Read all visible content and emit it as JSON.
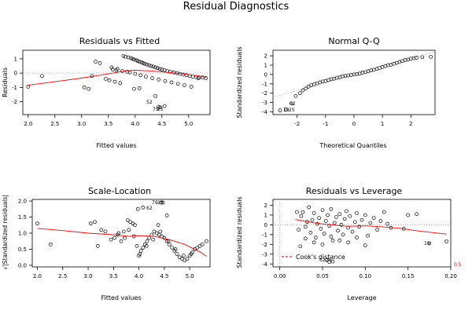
{
  "figure_title": "Residual Diagnostics",
  "panels": {
    "rvf": {
      "title": "Residuals vs Fitted",
      "xlabel": "Fitted values",
      "ylabel": "Residuals",
      "xticks": [
        "2.0",
        "2.5",
        "3.0",
        "3.5",
        "4.0",
        "4.5",
        "5.0"
      ],
      "yticks": [
        "-2",
        "-1",
        "0",
        "1"
      ],
      "point_labels": [
        "52",
        "79",
        "25"
      ]
    },
    "qq": {
      "title": "Normal Q-Q",
      "xlabel": "Theoretical Quantiles",
      "ylabel": "Standardized residuals",
      "xticks": [
        "-2",
        "-1",
        "0",
        "1",
        "2"
      ],
      "yticks": [
        "-4",
        "-3",
        "-2",
        "-1",
        "0",
        "1",
        "2"
      ],
      "point_labels": [
        "62",
        "19",
        "25"
      ]
    },
    "sl": {
      "title": "Scale-Location",
      "xlabel": "Fitted values",
      "ylabel": "√|Standardized residuals|",
      "xticks": [
        "2.0",
        "2.5",
        "3.0",
        "3.5",
        "4.0",
        "4.5",
        "5.0"
      ],
      "yticks": [
        "0.0",
        "0.5",
        "1.0",
        "1.5",
        "2.0"
      ],
      "point_labels": [
        "62",
        "79",
        "25"
      ]
    },
    "rvl": {
      "title": "Residuals vs Leverage",
      "xlabel": "Leverage",
      "ylabel": "Standardized residuals",
      "xticks": [
        "0.00",
        "0.05",
        "0.10",
        "0.15",
        "0.20"
      ],
      "yticks": [
        "-4",
        "-3",
        "-2",
        "-1",
        "0",
        "1",
        "2"
      ],
      "point_labels": [
        "19",
        "62",
        "25"
      ],
      "legend_label": "Cook's distance",
      "cook_label": "0.5"
    }
  },
  "colors": {
    "points": "#000000",
    "smooth": "#ff0000",
    "reference": "#999999",
    "cook": "#ff0000"
  },
  "chart_data": [
    {
      "type": "scatter",
      "title": "Residuals vs Fitted",
      "xlabel": "Fitted values",
      "ylabel": "Residuals",
      "xlim": [
        1.9,
        5.4
      ],
      "ylim": [
        -2.9,
        1.6
      ],
      "x": [
        2.0,
        2.26,
        3.05,
        3.13,
        3.19,
        3.26,
        3.34,
        3.45,
        3.52,
        3.56,
        3.62,
        3.67,
        3.72,
        3.78,
        3.82,
        3.87,
        3.92,
        3.95,
        3.98,
        4.02,
        4.05,
        4.08,
        4.12,
        4.15,
        4.18,
        4.22,
        4.26,
        4.3,
        4.34,
        4.38,
        4.42,
        4.46,
        4.5,
        4.55,
        4.6,
        4.66,
        4.72,
        4.78,
        4.84,
        4.9,
        4.96,
        5.02,
        5.08,
        5.14,
        5.2,
        5.26,
        5.32,
        3.58,
        3.65,
        3.76,
        3.85,
        3.9,
        4.0,
        4.1,
        4.2,
        4.32,
        4.44,
        4.56,
        4.68,
        4.8,
        4.92,
        5.05,
        5.18,
        3.98,
        4.08,
        4.38,
        4.44,
        4.47,
        4.55
      ],
      "y": [
        -0.95,
        -0.2,
        -1.0,
        -1.1,
        -0.2,
        0.8,
        0.7,
        -0.4,
        -0.5,
        0.4,
        -0.6,
        0.3,
        -0.7,
        1.2,
        1.15,
        1.1,
        1.05,
        1.0,
        0.95,
        0.9,
        0.85,
        0.8,
        0.75,
        0.7,
        0.65,
        0.6,
        0.55,
        0.5,
        0.45,
        0.4,
        0.35,
        0.3,
        0.25,
        0.2,
        0.15,
        0.1,
        0.05,
        0.0,
        -0.05,
        -0.1,
        -0.15,
        -0.2,
        -0.25,
        -0.28,
        -0.3,
        -0.3,
        -0.35,
        0.25,
        0.2,
        0.15,
        0.1,
        0.05,
        -0.05,
        -0.15,
        -0.25,
        -0.35,
        -0.45,
        -0.55,
        -0.65,
        -0.75,
        -0.85,
        -0.95,
        -0.35,
        -1.1,
        -1.05,
        -1.6,
        -2.35,
        -2.4,
        -2.3
      ],
      "smooth": {
        "x": [
          2.0,
          2.5,
          3.0,
          3.5,
          3.8,
          4.0,
          4.3,
          4.6,
          4.9,
          5.2,
          5.33
        ],
        "y": [
          -0.85,
          -0.6,
          -0.35,
          -0.05,
          0.15,
          0.2,
          0.15,
          0.05,
          -0.05,
          -0.2,
          -0.3
        ]
      }
    },
    {
      "type": "scatter",
      "title": "Normal Q-Q",
      "xlabel": "Theoretical Quantiles",
      "ylabel": "Standardized residuals",
      "xlim": [
        -2.85,
        2.85
      ],
      "ylim": [
        -4.3,
        2.6
      ],
      "x": [
        -2.6,
        -2.4,
        -2.2,
        -2.05,
        -1.9,
        -1.8,
        -1.7,
        -1.6,
        -1.5,
        -1.4,
        -1.3,
        -1.2,
        -1.1,
        -1.0,
        -0.9,
        -0.8,
        -0.7,
        -0.6,
        -0.5,
        -0.4,
        -0.3,
        -0.2,
        -0.1,
        0.0,
        0.1,
        0.2,
        0.3,
        0.4,
        0.5,
        0.6,
        0.7,
        0.8,
        0.9,
        1.0,
        1.1,
        1.2,
        1.3,
        1.4,
        1.5,
        1.6,
        1.7,
        1.8,
        1.9,
        2.0,
        2.1,
        2.2,
        2.4,
        2.7
      ],
      "y": [
        -3.85,
        -3.75,
        -3.1,
        -2.3,
        -2.0,
        -1.7,
        -1.5,
        -1.3,
        -1.15,
        -1.05,
        -0.95,
        -0.85,
        -0.75,
        -0.7,
        -0.6,
        -0.5,
        -0.45,
        -0.35,
        -0.3,
        -0.2,
        -0.15,
        -0.1,
        -0.05,
        0.0,
        0.05,
        0.1,
        0.2,
        0.25,
        0.35,
        0.45,
        0.5,
        0.6,
        0.7,
        0.8,
        0.9,
        1.0,
        1.05,
        1.15,
        1.25,
        1.35,
        1.45,
        1.55,
        1.6,
        1.7,
        1.75,
        1.8,
        1.85,
        1.9
      ],
      "reference_line": {
        "x": [
          -2.85,
          2.85
        ],
        "y": [
          -2.45,
          2.45
        ]
      }
    },
    {
      "type": "scatter",
      "title": "Scale-Location",
      "xlabel": "Fitted values",
      "ylabel": "√|Standardized residuals|",
      "xlim": [
        1.9,
        5.4
      ],
      "ylim": [
        -0.05,
        2.05
      ],
      "x": [
        2.0,
        2.26,
        3.05,
        3.13,
        3.19,
        3.26,
        3.34,
        3.45,
        3.52,
        3.58,
        3.65,
        3.72,
        3.78,
        3.83,
        3.88,
        3.92,
        3.96,
        4.0,
        4.04,
        4.08,
        4.12,
        4.16,
        4.2,
        4.25,
        4.3,
        4.35,
        4.4,
        4.45,
        4.5,
        4.55,
        4.6,
        4.65,
        4.7,
        4.75,
        4.8,
        4.85,
        4.9,
        4.95,
        5.0,
        5.05,
        5.1,
        5.15,
        5.2,
        5.25,
        5.33,
        3.6,
        3.7,
        3.8,
        3.9,
        4.02,
        4.15,
        4.28,
        4.42,
        4.58,
        4.72,
        4.88,
        5.03,
        3.98,
        4.08,
        4.38,
        4.44,
        4.47,
        4.55
      ],
      "y": [
        1.3,
        0.65,
        1.3,
        1.35,
        0.6,
        1.1,
        1.05,
        0.8,
        0.85,
        0.95,
        0.75,
        0.85,
        1.4,
        1.35,
        1.3,
        1.25,
        0.6,
        0.3,
        0.45,
        0.55,
        0.65,
        0.75,
        0.85,
        0.95,
        1.05,
        1.0,
        0.95,
        0.9,
        0.85,
        0.75,
        0.65,
        0.55,
        0.45,
        0.35,
        0.25,
        0.2,
        0.15,
        0.2,
        0.3,
        0.4,
        0.5,
        0.55,
        0.6,
        0.65,
        0.75,
        1.0,
        1.05,
        1.1,
        0.9,
        0.35,
        0.6,
        0.8,
        1.05,
        0.75,
        0.5,
        0.3,
        0.35,
        1.75,
        1.8,
        1.25,
        1.95,
        1.95,
        1.55
      ],
      "smooth": {
        "x": [
          2.0,
          2.5,
          3.0,
          3.5,
          3.8,
          4.0,
          4.3,
          4.6,
          4.9,
          5.2,
          5.33
        ],
        "y": [
          1.15,
          1.08,
          1.0,
          0.95,
          0.9,
          0.92,
          0.9,
          0.8,
          0.65,
          0.42,
          0.28
        ]
      }
    },
    {
      "type": "scatter",
      "title": "Residuals vs Leverage",
      "xlabel": "Leverage",
      "ylabel": "Standardized residuals",
      "xlim": [
        -0.008,
        0.2
      ],
      "ylim": [
        -4.3,
        2.6
      ],
      "x": [
        0.02,
        0.022,
        0.025,
        0.027,
        0.03,
        0.032,
        0.034,
        0.036,
        0.038,
        0.04,
        0.042,
        0.044,
        0.046,
        0.048,
        0.05,
        0.052,
        0.054,
        0.056,
        0.058,
        0.06,
        0.062,
        0.064,
        0.066,
        0.068,
        0.07,
        0.072,
        0.074,
        0.076,
        0.078,
        0.08,
        0.082,
        0.085,
        0.088,
        0.09,
        0.093,
        0.096,
        0.1,
        0.103,
        0.106,
        0.11,
        0.114,
        0.118,
        0.122,
        0.126,
        0.13,
        0.145,
        0.15,
        0.16,
        0.175,
        0.195,
        0.024,
        0.03,
        0.04,
        0.05,
        0.06,
        0.07,
        0.08,
        0.09,
        0.1,
        0.055,
        0.058,
        0.062
      ],
      "y": [
        1.3,
        -0.5,
        0.9,
        1.3,
        -0.2,
        0.3,
        1.8,
        -0.8,
        0.5,
        1.2,
        -1.3,
        0.1,
        0.7,
        -0.4,
        1.5,
        -0.9,
        0.4,
        1.0,
        -0.1,
        1.6,
        -1.6,
        0.2,
        0.8,
        -0.6,
        1.1,
        0.0,
        -1.0,
        0.6,
        1.4,
        -0.3,
        0.9,
        -0.7,
        0.3,
        1.2,
        -0.2,
        0.5,
        1.0,
        -1.1,
        0.2,
        0.7,
        -0.5,
        0.4,
        1.3,
        0.1,
        -0.3,
        -0.4,
        1.0,
        1.1,
        -1.9,
        -1.7,
        -2.2,
        -1.4,
        -1.8,
        -2.0,
        -1.2,
        -1.6,
        -1.8,
        -1.3,
        -2.1,
        -3.6,
        -3.8,
        -3.75
      ],
      "smooth": {
        "x": [
          0.018,
          0.04,
          0.06,
          0.08,
          0.1,
          0.12,
          0.14,
          0.16,
          0.18,
          0.195
        ],
        "y": [
          0.55,
          0.2,
          0.0,
          -0.15,
          -0.1,
          -0.2,
          -0.35,
          -0.6,
          -0.8,
          -0.95
        ]
      },
      "cooks_distance_level": 0.5
    }
  ]
}
